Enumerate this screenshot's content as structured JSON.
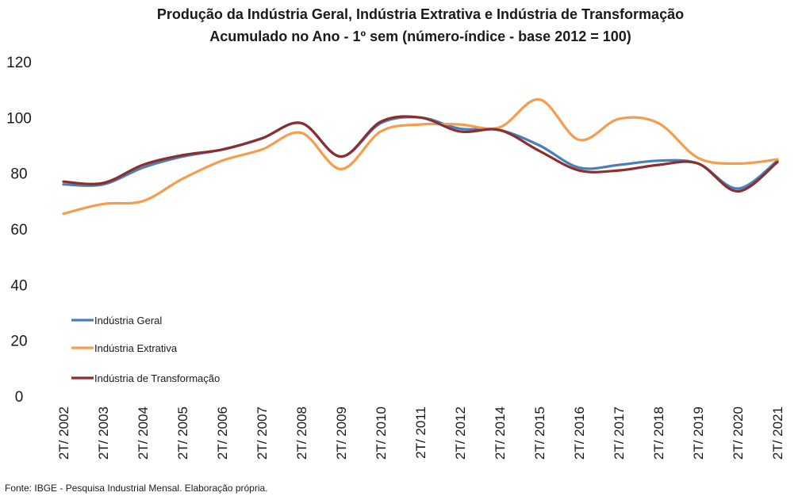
{
  "chart_data": {
    "type": "line",
    "title": "Produção da Indústria Geral, Indústria Extrativa e Indústria de Transformação",
    "subtitle": "Acumulado no Ano - 1º sem (número-índice - base 2012 = 100)",
    "categories": [
      "2T/ 2002",
      "2T/ 2003",
      "2T/ 2004",
      "2T/ 2005",
      "2T/ 2006",
      "2T/ 2007",
      "2T/ 2008",
      "2T/ 2009",
      "2T/ 2010",
      "2T/ 2011",
      "2T/ 2012",
      "2T/ 2014",
      "2T/ 2015",
      "2T/ 2016",
      "2T/ 2017",
      "2T/ 2018",
      "2T/ 2019",
      "2T/ 2020",
      "2T/ 2021"
    ],
    "series": [
      {
        "name": "Indústria Geral",
        "color": "#4a7ebb",
        "values": [
          76,
          76,
          82,
          86,
          88.5,
          92.5,
          98,
          86,
          98,
          100,
          96,
          95.5,
          90,
          82,
          83,
          84.5,
          83.5,
          74.5,
          84.5
        ]
      },
      {
        "name": "Indústria Extrativa",
        "color": "#f59d4e",
        "values": [
          65.5,
          69,
          70,
          78,
          84.5,
          88.5,
          94.5,
          81.5,
          95,
          97.5,
          97.5,
          96.5,
          106.5,
          92,
          99.5,
          98,
          85.5,
          83.5,
          85
        ]
      },
      {
        "name": "Indústria de Transformação",
        "color": "#8b2e2e",
        "values": [
          77,
          76.5,
          83,
          86.5,
          88.5,
          92.5,
          98,
          86,
          98.5,
          100,
          95,
          95.5,
          88,
          81,
          81,
          83,
          83.5,
          73.5,
          84
        ]
      }
    ],
    "ylim": [
      0,
      120
    ],
    "yticks": [
      0,
      20,
      40,
      60,
      80,
      100,
      120
    ],
    "grid": false,
    "legend": "left-lower",
    "source": "Fonte: IBGE - Pesquisa Industrial Mensal. Elaboração própria."
  }
}
